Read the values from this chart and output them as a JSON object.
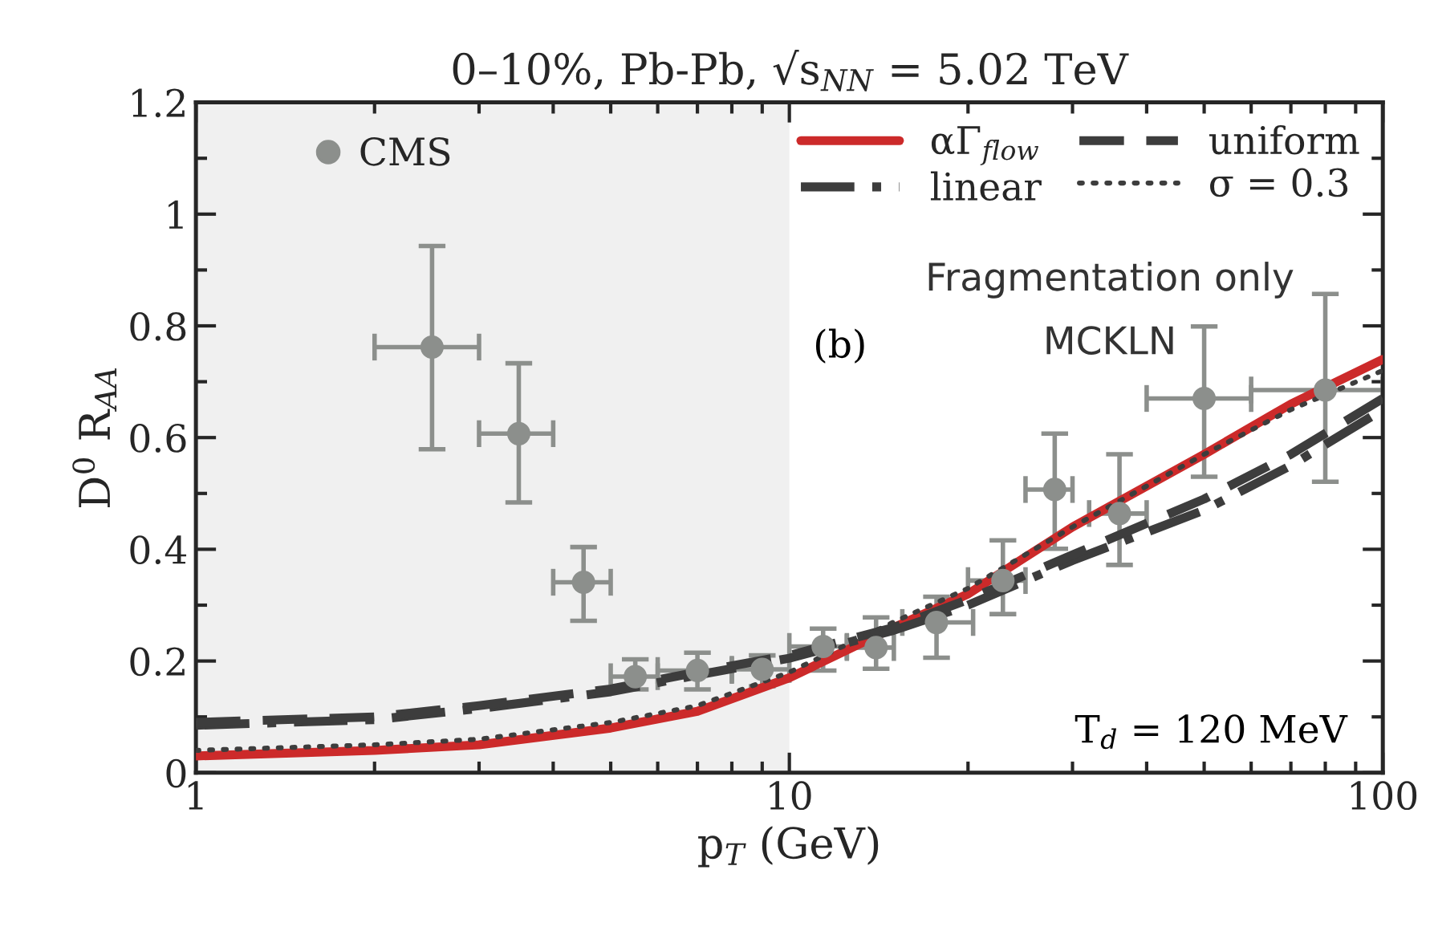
{
  "chart_data": {
    "type": "line",
    "title": "0–10%, Pb-Pb, √s$_{NN}$ = 5.02 TeV",
    "xlabel": "p$_{T}$ (GeV)",
    "ylabel": "D$^{0}$ R$_{AA}$",
    "log": "x",
    "xlim": [
      1,
      100
    ],
    "xticks": [
      1,
      10,
      100
    ],
    "ylim": [
      0,
      1.2
    ],
    "yticks": [
      0,
      0.2,
      0.4,
      0.6,
      0.8,
      1,
      1.2
    ],
    "grid": false,
    "legend": "top right",
    "bands": [
      {
        "axis": "x",
        "from": 1,
        "to": 10,
        "color": "#f0f0f0"
      }
    ],
    "annotations": [
      "(b)",
      "Fragmentation only",
      "MCKLN",
      "T$_{d}$ = 120 MeV"
    ],
    "series": [
      {
        "name": "αΓ$_{flow}$",
        "color": "#cc2a2a",
        "line_style": "solid",
        "x": [
          1,
          2,
          3,
          5,
          7,
          10,
          15,
          20,
          30,
          50,
          70,
          100
        ],
        "values": [
          0.03,
          0.04,
          0.05,
          0.08,
          0.11,
          0.17,
          0.26,
          0.32,
          0.44,
          0.57,
          0.66,
          0.74
        ]
      },
      {
        "name": "linear",
        "color": "#3d3d3d",
        "line_style": "dashdot",
        "x": [
          1,
          2,
          3,
          5,
          7,
          10,
          15,
          20,
          30,
          50,
          70,
          100
        ],
        "values": [
          0.085,
          0.095,
          0.115,
          0.145,
          0.175,
          0.205,
          0.255,
          0.3,
          0.38,
          0.47,
          0.55,
          0.65
        ]
      },
      {
        "name": "uniform",
        "color": "#3d3d3d",
        "line_style": "dashed",
        "x": [
          1,
          2,
          3,
          5,
          7,
          10,
          15,
          20,
          30,
          50,
          70,
          100
        ],
        "values": [
          0.09,
          0.1,
          0.12,
          0.15,
          0.18,
          0.21,
          0.26,
          0.31,
          0.39,
          0.49,
          0.57,
          0.67
        ]
      },
      {
        "name": "σ = 0.3",
        "color": "#3d3d3d",
        "line_style": "dotted",
        "x": [
          1,
          2,
          3,
          5,
          7,
          10,
          15,
          20,
          30,
          50,
          70,
          100
        ],
        "values": [
          0.04,
          0.05,
          0.06,
          0.09,
          0.12,
          0.18,
          0.27,
          0.33,
          0.44,
          0.57,
          0.65,
          0.72
        ]
      },
      {
        "name": "CMS",
        "type": "scatter",
        "marker": "circle",
        "color": "#8c8f8c",
        "x": [
          2.5,
          3.5,
          4.5,
          5.5,
          7,
          9,
          11.4,
          14,
          17.7,
          22.9,
          28,
          36,
          50,
          80
        ],
        "values": [
          0.762,
          0.607,
          0.341,
          0.172,
          0.183,
          0.185,
          0.226,
          0.224,
          0.269,
          0.344,
          0.507,
          0.464,
          0.67,
          0.685
        ],
        "errors": [
          [
            0.579,
            0.943
          ],
          [
            0.484,
            0.733
          ],
          [
            0.272,
            0.404
          ],
          [
            0.149,
            0.203
          ],
          [
            0.149,
            0.215
          ],
          [
            0.155,
            0.21
          ],
          [
            0.183,
            0.258
          ],
          [
            0.186,
            0.278
          ],
          [
            0.206,
            0.315
          ],
          [
            0.284,
            0.416
          ],
          [
            0.401,
            0.607
          ],
          [
            0.372,
            0.57
          ],
          [
            0.53,
            0.799
          ],
          [
            0.521,
            0.857
          ]
        ],
        "xerrors": [
          [
            2,
            3
          ],
          [
            3,
            4
          ],
          [
            4,
            5
          ],
          [
            5,
            6
          ],
          [
            6,
            8
          ],
          [
            8,
            10
          ],
          [
            10,
            12.5
          ],
          [
            12.5,
            15
          ],
          [
            15.5,
            20.4
          ],
          [
            20,
            25
          ],
          [
            25,
            30
          ],
          [
            32,
            40
          ],
          [
            40,
            60
          ],
          [
            60,
            100
          ]
        ]
      }
    ]
  }
}
